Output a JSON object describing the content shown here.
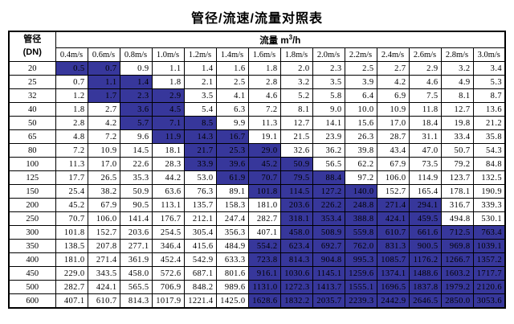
{
  "title": "管径/流速/流量对照表",
  "colors": {
    "highlight_blue": "#37379B",
    "grid_line": "#000000",
    "background": "#ffffff",
    "text": "#000000"
  },
  "table": {
    "corner_line1": "管径",
    "corner_line2": "(DN)",
    "flow_header_prefix": "流量 m",
    "flow_header_sup": "3",
    "flow_header_suffix": "/h",
    "velocity_headers": [
      "0.4m/s",
      "0.6m/s",
      "0.8m/s",
      "1.0m/s",
      "1.2m/s",
      "1.4m/s",
      "1.6m/s",
      "1.8m/s",
      "2.0m/s",
      "2.2m/s",
      "2.4m/s",
      "2.6m/s",
      "2.8m/s",
      "3.0m/s"
    ],
    "rows": [
      {
        "dn": "20",
        "values": [
          "0.5",
          "0.7",
          "0.9",
          "1.1",
          "1.4",
          "1.6",
          "1.8",
          "2.0",
          "2.3",
          "2.5",
          "2.7",
          "2.9",
          "3.2",
          "3.4"
        ],
        "highlight": [
          0,
          1
        ]
      },
      {
        "dn": "25",
        "values": [
          "0.7",
          "1.1",
          "1.4",
          "1.8",
          "2.1",
          "2.5",
          "2.8",
          "3.2",
          "3.5",
          "3.9",
          "4.2",
          "4.6",
          "4.9",
          "5.3"
        ],
        "highlight": [
          1,
          2
        ]
      },
      {
        "dn": "32",
        "values": [
          "1.2",
          "1.7",
          "2.3",
          "2.9",
          "3.5",
          "4.1",
          "4.6",
          "5.2",
          "5.8",
          "6.4",
          "6.9",
          "7.5",
          "8.1",
          "8.7"
        ],
        "highlight": [
          1,
          3
        ]
      },
      {
        "dn": "40",
        "values": [
          "1.8",
          "2.7",
          "3.6",
          "4.5",
          "5.4",
          "6.3",
          "7.2",
          "8.1",
          "9.0",
          "10.0",
          "10.9",
          "11.8",
          "12.7",
          "13.6"
        ],
        "highlight": [
          2,
          3
        ]
      },
      {
        "dn": "50",
        "values": [
          "2.8",
          "4.2",
          "5.7",
          "7.1",
          "8.5",
          "9.9",
          "11.3",
          "12.7",
          "14.1",
          "15.6",
          "17.0",
          "18.4",
          "19.8",
          "21.2"
        ],
        "highlight": [
          2,
          4
        ]
      },
      {
        "dn": "65",
        "values": [
          "4.8",
          "7.2",
          "9.6",
          "11.9",
          "14.3",
          "16.7",
          "19.1",
          "21.5",
          "23.9",
          "26.3",
          "28.7",
          "31.1",
          "33.4",
          "35.8"
        ],
        "highlight": [
          3,
          5
        ]
      },
      {
        "dn": "80",
        "values": [
          "7.2",
          "10.9",
          "14.5",
          "18.1",
          "21.7",
          "25.3",
          "29.0",
          "32.6",
          "36.2",
          "39.8",
          "43.4",
          "47.0",
          "50.7",
          "54.3"
        ],
        "highlight": [
          4,
          6
        ]
      },
      {
        "dn": "100",
        "values": [
          "11.3",
          "17.0",
          "22.6",
          "28.3",
          "33.9",
          "39.6",
          "45.2",
          "50.9",
          "56.5",
          "62.2",
          "67.9",
          "73.5",
          "79.2",
          "84.8"
        ],
        "highlight": [
          4,
          7
        ]
      },
      {
        "dn": "125",
        "values": [
          "17.7",
          "26.5",
          "35.3",
          "44.2",
          "53.0",
          "61.9",
          "70.7",
          "79.5",
          "88.4",
          "97.2",
          "106.0",
          "114.9",
          "123.7",
          "132.5"
        ],
        "highlight": [
          5,
          8
        ]
      },
      {
        "dn": "150",
        "values": [
          "25.4",
          "38.2",
          "50.9",
          "63.6",
          "76.3",
          "89.1",
          "101.8",
          "114.5",
          "127.2",
          "140.0",
          "152.7",
          "165.4",
          "178.1",
          "190.9"
        ],
        "highlight": [
          6,
          9
        ]
      },
      {
        "dn": "200",
        "values": [
          "45.2",
          "67.9",
          "90.5",
          "113.1",
          "135.7",
          "158.3",
          "181.0",
          "203.6",
          "226.2",
          "248.8",
          "271.4",
          "294.1",
          "316.7",
          "339.3"
        ],
        "highlight": [
          7,
          11
        ]
      },
      {
        "dn": "250",
        "values": [
          "70.7",
          "106.0",
          "141.4",
          "176.7",
          "212.1",
          "247.4",
          "282.7",
          "318.1",
          "353.4",
          "388.8",
          "424.1",
          "459.5",
          "494.8",
          "530.1"
        ],
        "highlight": [
          7,
          11
        ]
      },
      {
        "dn": "300",
        "values": [
          "101.8",
          "152.7",
          "203.6",
          "254.5",
          "305.4",
          "356.3",
          "407.1",
          "458.0",
          "508.9",
          "559.8",
          "610.7",
          "661.6",
          "712.5",
          "763.4"
        ],
        "highlight": [
          7,
          13
        ]
      },
      {
        "dn": "350",
        "values": [
          "138.5",
          "207.8",
          "277.1",
          "346.4",
          "415.6",
          "484.9",
          "554.2",
          "623.4",
          "692.7",
          "762.0",
          "831.3",
          "900.5",
          "969.8",
          "1039.1"
        ],
        "highlight": [
          6,
          13
        ]
      },
      {
        "dn": "400",
        "values": [
          "181.0",
          "271.4",
          "361.9",
          "452.4",
          "542.9",
          "633.3",
          "723.8",
          "814.3",
          "904.8",
          "995.3",
          "1085.7",
          "1176.2",
          "1266.7",
          "1357.2"
        ],
        "highlight": [
          6,
          13
        ]
      },
      {
        "dn": "450",
        "values": [
          "229.0",
          "343.5",
          "458.0",
          "572.6",
          "687.1",
          "801.6",
          "916.1",
          "1030.6",
          "1145.1",
          "1259.6",
          "1374.1",
          "1488.6",
          "1603.2",
          "1717.7"
        ],
        "highlight": [
          6,
          13
        ]
      },
      {
        "dn": "500",
        "values": [
          "282.7",
          "424.1",
          "565.5",
          "706.9",
          "848.2",
          "989.6",
          "1131.0",
          "1272.3",
          "1413.7",
          "1555.1",
          "1696.5",
          "1837.8",
          "1979.2",
          "2120.6"
        ],
        "highlight": [
          6,
          13
        ]
      },
      {
        "dn": "600",
        "values": [
          "407.1",
          "610.7",
          "814.3",
          "1017.9",
          "1221.4",
          "1425.0",
          "1628.6",
          "1832.2",
          "2035.7",
          "2239.3",
          "2442.9",
          "2646.5",
          "2850.0",
          "3053.6"
        ],
        "highlight": [
          6,
          13
        ]
      }
    ]
  }
}
